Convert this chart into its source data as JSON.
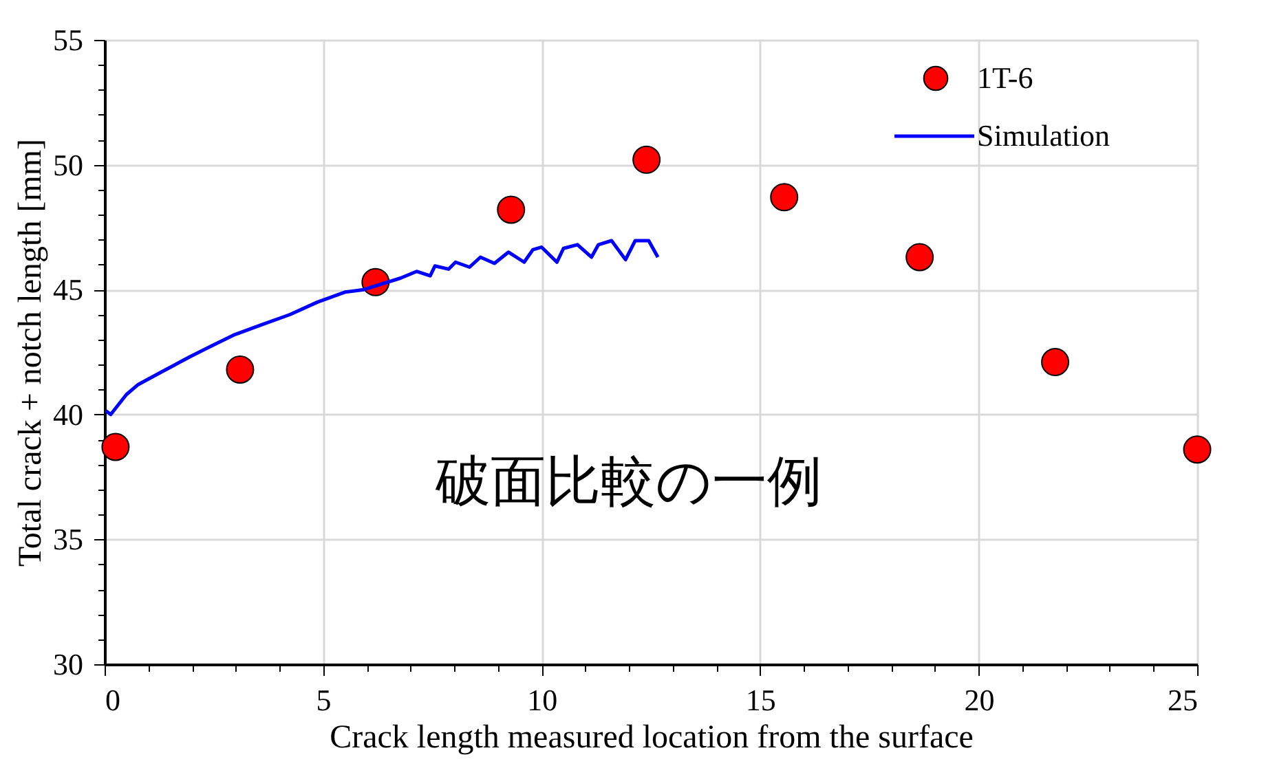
{
  "chart_data": {
    "type": "scatter",
    "xlabel": "Crack length measured location from the surface",
    "ylabel": "Total crack + notch length [mm]",
    "xlim": [
      0,
      25
    ],
    "ylim": [
      30,
      55
    ],
    "xticks": [
      0,
      {
        "value": 1,
        "label": null
      },
      {
        "value": 2,
        "label": null
      },
      {
        "value": 3,
        "label": null
      },
      {
        "value": 4,
        "label": null
      },
      5,
      {
        "value": 6,
        "label": null
      },
      {
        "value": 7,
        "label": null
      },
      {
        "value": 8,
        "label": null
      },
      {
        "value": 9,
        "label": null
      },
      10,
      {
        "value": 11,
        "label": null
      },
      {
        "value": 12,
        "label": null
      },
      {
        "value": 13,
        "label": null
      },
      {
        "value": 14,
        "label": null
      },
      15,
      {
        "value": 16,
        "label": null
      },
      {
        "value": 17,
        "label": null
      },
      {
        "value": 18,
        "label": null
      },
      {
        "value": 19,
        "label": null
      },
      20,
      {
        "value": 21,
        "label": null
      },
      {
        "value": 22,
        "label": null
      },
      {
        "value": 23,
        "label": null
      },
      {
        "value": 24,
        "label": null
      },
      25
    ],
    "yticks": [
      30,
      {
        "value": 31,
        "label": null
      },
      {
        "value": 32,
        "label": null
      },
      {
        "value": 33,
        "label": null
      },
      {
        "value": 34,
        "label": null
      },
      35,
      {
        "value": 36,
        "label": null
      },
      {
        "value": 37,
        "label": null
      },
      {
        "value": 38,
        "label": null
      },
      {
        "value": 39,
        "label": null
      },
      40,
      {
        "value": 41,
        "label": null
      },
      {
        "value": 42,
        "label": null
      },
      {
        "value": 43,
        "label": null
      },
      {
        "value": 44,
        "label": null
      },
      45,
      {
        "value": 46,
        "label": null
      },
      {
        "value": 47,
        "label": null
      },
      {
        "value": 48,
        "label": null
      },
      {
        "value": 49,
        "label": null
      },
      50,
      {
        "value": 51,
        "label": null
      },
      {
        "value": 52,
        "label": null
      },
      {
        "value": 53,
        "label": null
      },
      {
        "value": 54,
        "label": null
      },
      55
    ],
    "grid": true,
    "legend": "top right",
    "annotations": [
      "破面比較の一例"
    ],
    "series": [
      {
        "name": "1T-6",
        "type": "scatter",
        "marker": "circle",
        "color": "#ff0000",
        "x": [
          0.25,
          3.1,
          6.2,
          9.3,
          12.4,
          15.55,
          18.65,
          21.75,
          25.0
        ],
        "values": [
          38.7,
          41.8,
          45.3,
          48.2,
          50.2,
          48.7,
          46.3,
          42.1,
          38.6
        ]
      },
      {
        "name": "Simulation",
        "type": "line",
        "marker": "none",
        "line_style": "solid",
        "color": "#0000ff",
        "x": [
          0.03,
          0.14,
          0.5,
          0.77,
          1.3,
          1.94,
          2.45,
          2.98,
          3.6,
          4.24,
          4.87,
          5.5,
          5.93,
          6.77,
          7.14,
          7.45,
          7.56,
          7.87,
          8.03,
          8.35,
          8.6,
          8.92,
          9.24,
          9.6,
          9.8,
          10.0,
          10.35,
          10.5,
          10.82,
          11.14,
          11.3,
          11.6,
          11.92,
          12.14,
          12.45,
          12.66
        ],
        "values": [
          40.15,
          40.0,
          40.8,
          41.2,
          41.7,
          42.3,
          42.75,
          43.2,
          43.6,
          44.0,
          44.5,
          44.9,
          45.0,
          45.46,
          45.73,
          45.55,
          45.95,
          45.82,
          46.1,
          45.9,
          46.3,
          46.05,
          46.5,
          46.1,
          46.6,
          46.7,
          46.1,
          46.65,
          46.8,
          46.3,
          46.8,
          46.96,
          46.2,
          46.96,
          46.96,
          46.3
        ]
      }
    ]
  }
}
